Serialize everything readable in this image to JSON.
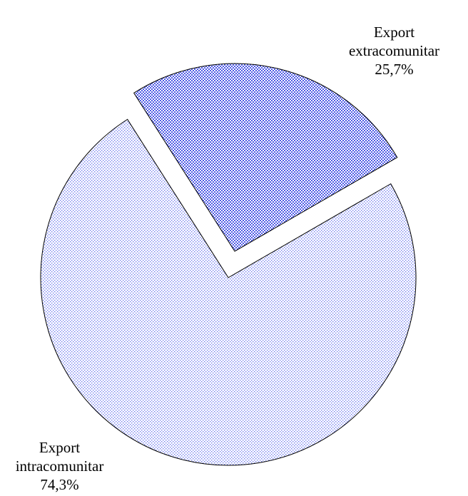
{
  "chart_data": {
    "type": "pie",
    "slices": [
      {
        "label_line1": "Export",
        "label_line2": "extracomunitar",
        "value": 25.7,
        "value_label": "25,7%",
        "exploded": true,
        "color": "#4f5be6",
        "pattern": "dense-dots"
      },
      {
        "label_line1": "Export",
        "label_line2": "intracomunitar",
        "value": 74.3,
        "value_label": "74,3%",
        "exploded": false,
        "color": "#6f7bf0",
        "pattern": "sparse-dots"
      }
    ],
    "start_angle_deg": 60,
    "direction": "clockwise",
    "border_color": "#000000",
    "legend": "none"
  }
}
